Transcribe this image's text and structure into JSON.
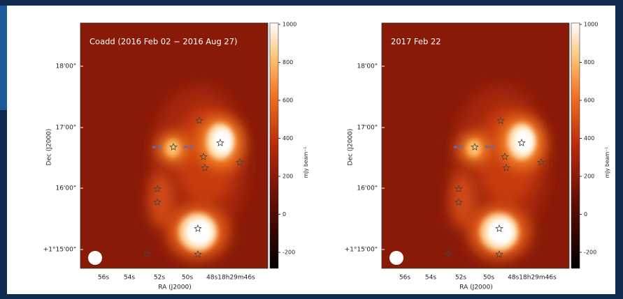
{
  "panels": [
    {
      "title": "Coadd (2016 Feb 02 − 2016 Aug 27)",
      "colorbar_label": "mJy beam⁻¹",
      "colorbar_ticks": [
        1000,
        800,
        600,
        400,
        200,
        0,
        -200
      ],
      "y_ticks": [
        "18'00\"",
        "17'00\"",
        "16'00\"",
        "+1°15'00\""
      ],
      "x_ticks": [
        "56s",
        "54s",
        "52s",
        "50s",
        "48s18h29m46s"
      ],
      "x_label": "RA (J2000)",
      "y_label": "Dec (J2000)"
    },
    {
      "title": "2017 Feb 22",
      "colorbar_label": "mJy beam⁻¹",
      "colorbar_ticks": [
        1000,
        800,
        600,
        400,
        200,
        0,
        -200
      ],
      "y_ticks": [
        "18'00\"",
        "17'00\"",
        "16'00\"",
        "+1°15'00\""
      ],
      "x_ticks": [
        "56s",
        "54s",
        "52s",
        "50s",
        "48s18h29m46s"
      ],
      "x_label": "RA (J2000)",
      "y_label": "Dec (J2000)"
    }
  ]
}
